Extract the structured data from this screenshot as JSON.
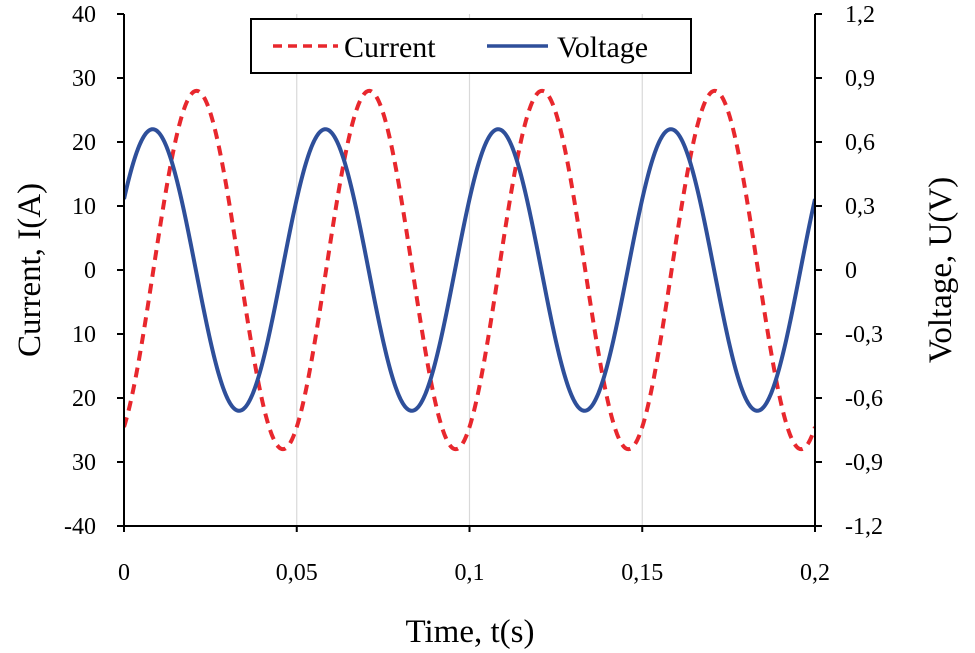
{
  "chart_data": {
    "type": "line",
    "xlabel": "Time, t(s)",
    "ylabel_left": "Current, I(A)",
    "ylabel_right": "Voltage, U(V)",
    "xlim": [
      0,
      0.2
    ],
    "ylim_left": [
      -40,
      40
    ],
    "ylim_right": [
      -1.2,
      1.2
    ],
    "x_ticks": [
      0,
      0.05,
      0.1,
      0.15,
      0.2
    ],
    "x_tick_labels": [
      "0",
      "0,05",
      "0,1",
      "0,15",
      "0,2"
    ],
    "y_left_ticks": [
      40,
      30,
      20,
      10,
      0,
      -10,
      -20,
      -30,
      -40
    ],
    "y_left_tick_labels": [
      "40",
      "30",
      "20",
      "10",
      "0",
      "10",
      "20",
      "30",
      "-40"
    ],
    "y_right_ticks": [
      1.2,
      0.9,
      0.6,
      0.3,
      0,
      -0.3,
      -0.6,
      -0.9,
      -1.2
    ],
    "y_right_tick_labels": [
      "1,2",
      "0,9",
      "0,6",
      "0,3",
      "0",
      "-0,3",
      "-0,6",
      "-0,9",
      "-1,2"
    ],
    "grid": "vertical",
    "legend_position": "top-center",
    "series": [
      {
        "name": "Current",
        "axis": "left",
        "style": "dashed",
        "color": "#e8272d",
        "amplitude": 28,
        "frequency_hz": 20,
        "phase_shift_s": 0.0085,
        "x": [
          0,
          0.0085,
          0.021,
          0.0335,
          0.046,
          0.0585,
          0.071,
          0.0835,
          0.096,
          0.1085,
          0.121,
          0.1335,
          0.146,
          0.1585,
          0.171,
          0.1835,
          0.196,
          0.2
        ],
        "values": [
          -24.2,
          0,
          28,
          0,
          -28,
          0,
          28,
          0,
          -28,
          0,
          28,
          0,
          -28,
          0,
          28,
          0,
          -28,
          -24.2
        ]
      },
      {
        "name": "Voltage",
        "axis": "right",
        "style": "solid",
        "color": "#2e4f9a",
        "amplitude": 0.66,
        "frequency_hz": 20,
        "phase_shift_s": -0.0042,
        "x": [
          0,
          0.0083,
          0.0208,
          0.0333,
          0.0458,
          0.0583,
          0.0708,
          0.0833,
          0.0958,
          0.1083,
          0.1208,
          0.1333,
          0.1458,
          0.1583,
          0.1708,
          0.1833,
          0.1958,
          0.2
        ],
        "values": [
          0.33,
          0.66,
          0,
          -0.66,
          0,
          0.66,
          0,
          -0.66,
          0,
          0.66,
          0,
          -0.66,
          0,
          0.66,
          0,
          -0.66,
          0,
          0.33
        ]
      }
    ]
  }
}
